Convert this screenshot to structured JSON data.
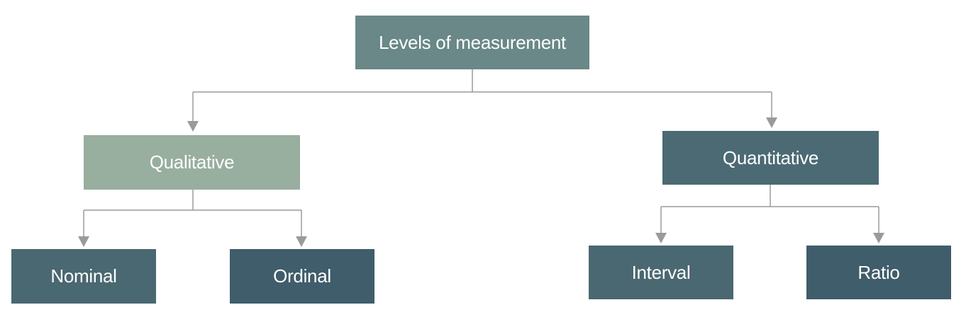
{
  "diagram": {
    "root": {
      "label": "Levels of measurement"
    },
    "branches": [
      {
        "label": "Qualitative",
        "color": "#98ae9f",
        "children": [
          {
            "label": "Nominal",
            "color": "#4a6871"
          },
          {
            "label": "Ordinal",
            "color": "#3f5d6b"
          }
        ]
      },
      {
        "label": "Quantitative",
        "color": "#4b6a74",
        "children": [
          {
            "label": "Interval",
            "color": "#4a6871"
          },
          {
            "label": "Ratio",
            "color": "#3f5d6b"
          }
        ]
      }
    ]
  },
  "colors": {
    "root": "#698887",
    "connector": "#9a9a9a"
  }
}
